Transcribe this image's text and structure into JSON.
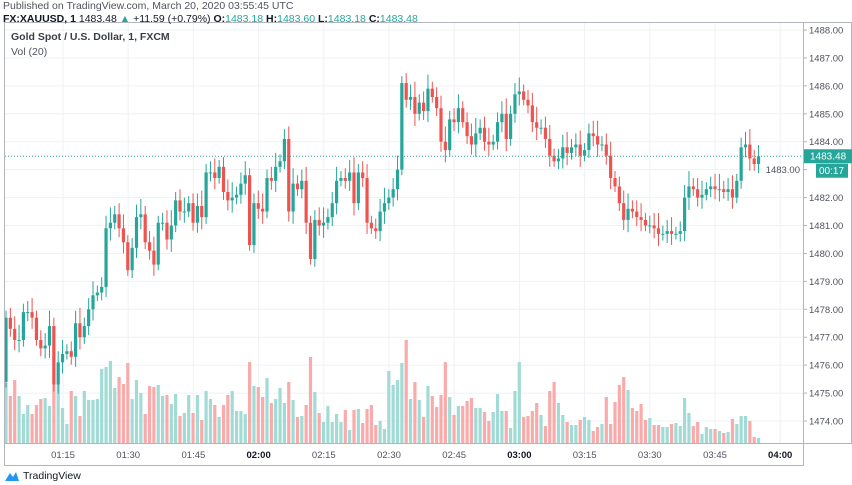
{
  "header": {
    "published": "Published on TradingView.com, March 20, 2020 03:55:45 UTC",
    "symbol": "FX:XAUUSD, 1",
    "last": "1483.48",
    "change": "+11.59 (+0.79%)",
    "o_label": "O:",
    "o": "1483.18",
    "h_label": "H:",
    "h": "1483.60",
    "l_label": "L:",
    "l": "1483.18",
    "c_label": "C:",
    "c": "1483.48"
  },
  "legend": {
    "title": "Gold Spot / U.S. Dollar, 1, FXCM",
    "volume": "Vol (20)"
  },
  "price_label": "1483.48",
  "countdown": "00:17",
  "footer": {
    "brand": "TradingView"
  },
  "colors": {
    "up": "#26a69a",
    "down": "#ef5350",
    "up_volume": "#a2dbd5",
    "down_volume": "#f8abaa",
    "grid": "#eef1f5"
  },
  "chart_data": {
    "type": "candlestick",
    "interval": "1 minute",
    "first_open": 1475.4,
    "close": [
      1477.7,
      1477.3,
      1476.9,
      1476.9,
      1477.9,
      1477.9,
      1477.7,
      1476.9,
      1476.6,
      1476.7,
      1477.4,
      1475.3,
      1476.1,
      1476.4,
      1476.5,
      1476.3,
      1477.5,
      1477.0,
      1477.4,
      1478.0,
      1478.5,
      1478.6,
      1478.8,
      1480.9,
      1481.1,
      1481.4,
      1480.9,
      1480.4,
      1479.4,
      1480.2,
      1481.3,
      1481.4,
      1480.4,
      1480.1,
      1479.6,
      1481.1,
      1481.1,
      1480.5,
      1481.0,
      1481.9,
      1481.5,
      1481.5,
      1481.8,
      1481.1,
      1481.7,
      1481.3,
      1482.9,
      1482.9,
      1482.7,
      1483.1,
      1482.2,
      1481.9,
      1482.0,
      1482.1,
      1482.5,
      1482.8,
      1480.3,
      1481.8,
      1481.6,
      1481.5,
      1482.7,
      1482.6,
      1483.1,
      1483.3,
      1484.1,
      1481.5,
      1482.5,
      1482.3,
      1482.6,
      1481.1,
      1479.8,
      1481.2,
      1481.0,
      1481.1,
      1481.3,
      1481.8,
      1482.6,
      1482.7,
      1482.6,
      1482.9,
      1481.8,
      1482.9,
      1482.7,
      1481.1,
      1480.9,
      1480.8,
      1481.5,
      1481.8,
      1482.0,
      1482.3,
      1483.0,
      1486.1,
      1485.5,
      1485.6,
      1485.0,
      1485.4,
      1485.1,
      1485.9,
      1485.6,
      1485.2,
      1484.0,
      1483.7,
      1484.8,
      1484.7,
      1485.2,
      1484.7,
      1484.2,
      1483.9,
      1484.3,
      1484.5,
      1484.0,
      1483.9,
      1484.0,
      1484.7,
      1485.0,
      1484.1,
      1485.0,
      1485.7,
      1485.8,
      1485.5,
      1485.3,
      1484.7,
      1484.5,
      1484.5,
      1484.1,
      1483.5,
      1483.3,
      1483.4,
      1483.8,
      1483.6,
      1483.8,
      1483.9,
      1483.5,
      1483.7,
      1484.3,
      1484.2,
      1483.9,
      1483.9,
      1483.5,
      1482.7,
      1482.4,
      1481.8,
      1481.2,
      1481.6,
      1481.5,
      1481.3,
      1481.2,
      1481.0,
      1481.0,
      1480.9,
      1480.7,
      1480.7,
      1480.8,
      1480.7,
      1480.7,
      1480.8,
      1482.0,
      1482.4,
      1482.3,
      1482.0,
      1482.1,
      1482.3,
      1482.4,
      1482.3,
      1482.3,
      1482.2,
      1482.3,
      1482.0,
      1482.6,
      1483.8,
      1483.9,
      1483.4,
      1483.2,
      1483.48
    ],
    "volume": [
      60,
      47,
      63,
      47,
      29,
      38,
      29,
      38,
      44,
      45,
      37,
      58,
      58,
      35,
      19,
      52,
      47,
      27,
      52,
      43,
      43,
      44,
      74,
      76,
      82,
      55,
      66,
      59,
      80,
      44,
      63,
      50,
      29,
      57,
      56,
      58,
      47,
      48,
      39,
      49,
      27,
      30,
      48,
      30,
      48,
      23,
      52,
      44,
      38,
      26,
      38,
      48,
      52,
      32,
      32,
      29,
      81,
      57,
      56,
      46,
      65,
      40,
      44,
      55,
      40,
      61,
      43,
      26,
      27,
      38,
      86,
      51,
      30,
      21,
      37,
      21,
      29,
      21,
      33,
      13,
      33,
      34,
      20,
      34,
      38,
      18,
      22,
      14,
      72,
      58,
      63,
      80,
      103,
      44,
      61,
      43,
      26,
      57,
      47,
      36,
      48,
      81,
      46,
      28,
      37,
      37,
      42,
      45,
      35,
      35,
      31,
      22,
      31,
      49,
      32,
      32,
      15,
      52,
      81,
      26,
      27,
      32,
      40,
      28,
      17,
      52,
      61,
      40,
      28,
      21,
      18,
      18,
      23,
      26,
      23,
      12,
      16,
      19,
      46,
      19,
      41,
      58,
      66,
      53,
      35,
      32,
      39,
      23,
      25,
      18,
      18,
      16,
      16,
      19,
      20,
      17,
      45,
      30,
      17,
      21,
      9,
      16,
      14,
      14,
      12,
      10,
      11,
      24,
      19,
      27,
      27,
      22,
      6,
      5
    ],
    "ylim": [
      1473.5,
      1488.3
    ],
    "y_ticks": [
      "1474.00",
      "1475.00",
      "1476.00",
      "1477.00",
      "1478.00",
      "1479.00",
      "1480.00",
      "1481.00",
      "1482.00",
      "1483.00",
      "1484.00",
      "1485.00",
      "1486.00",
      "1487.00",
      "1488.00"
    ],
    "x_ticks": [
      {
        "label": "01:15",
        "bold": false
      },
      {
        "label": "01:30",
        "bold": false
      },
      {
        "label": "01:45",
        "bold": false
      },
      {
        "label": "02:00",
        "bold": true
      },
      {
        "label": "02:15",
        "bold": false
      },
      {
        "label": "02:30",
        "bold": false
      },
      {
        "label": "02:45",
        "bold": false
      },
      {
        "label": "03:00",
        "bold": true
      },
      {
        "label": "03:15",
        "bold": false
      },
      {
        "label": "03:30",
        "bold": false
      },
      {
        "label": "03:45",
        "bold": false
      },
      {
        "label": "04:00",
        "bold": true
      }
    ],
    "grid": true
  }
}
